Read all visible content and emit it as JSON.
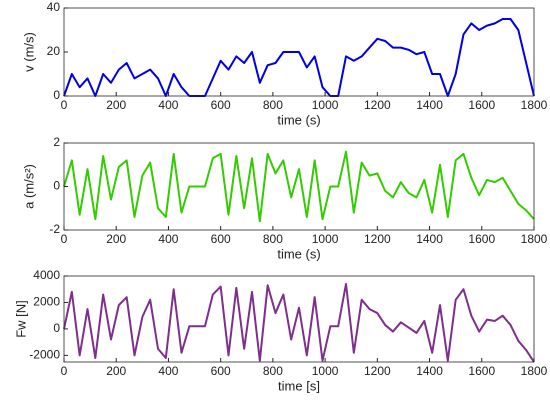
{
  "chart_data": [
    {
      "type": "line",
      "xlabel": "time (s)",
      "ylabel": "v (m/s)",
      "x": [
        0,
        30,
        60,
        90,
        120,
        150,
        180,
        210,
        240,
        270,
        300,
        330,
        360,
        390,
        420,
        450,
        480,
        510,
        540,
        570,
        600,
        630,
        660,
        690,
        720,
        750,
        780,
        810,
        840,
        870,
        900,
        930,
        960,
        990,
        1020,
        1050,
        1080,
        1110,
        1140,
        1170,
        1200,
        1230,
        1260,
        1290,
        1320,
        1350,
        1380,
        1410,
        1440,
        1470,
        1500,
        1530,
        1560,
        1590,
        1620,
        1650,
        1680,
        1710,
        1740,
        1770,
        1800
      ],
      "series": [
        {
          "color": "#0000e6",
          "values": [
            0,
            10,
            4,
            8,
            0,
            10,
            6,
            12,
            15,
            8,
            10,
            12,
            8,
            0,
            10,
            4,
            0,
            0,
            0,
            8,
            16,
            12,
            18,
            15,
            20,
            6,
            14,
            15,
            20,
            20,
            20,
            13,
            18,
            4,
            0,
            0,
            18,
            16,
            18,
            22,
            26,
            25,
            22,
            22,
            21,
            19,
            20,
            10,
            10,
            0,
            10,
            28,
            33,
            30,
            32,
            33,
            35,
            35,
            30,
            15,
            0
          ]
        }
      ],
      "xlim": [
        0,
        1800
      ],
      "xticks": [
        0,
        200,
        400,
        600,
        800,
        1000,
        1200,
        1400,
        1600,
        1800
      ],
      "ylim": [
        0,
        40
      ],
      "yticks": [
        0,
        20,
        40
      ]
    },
    {
      "type": "line",
      "xlabel": "time (s)",
      "ylabel": "a (m/s²)",
      "x": [
        0,
        30,
        60,
        90,
        120,
        150,
        180,
        210,
        240,
        270,
        300,
        330,
        360,
        390,
        420,
        450,
        480,
        510,
        540,
        570,
        600,
        630,
        660,
        690,
        720,
        750,
        780,
        810,
        840,
        870,
        900,
        930,
        960,
        990,
        1020,
        1050,
        1080,
        1110,
        1140,
        1170,
        1200,
        1230,
        1260,
        1290,
        1320,
        1350,
        1380,
        1410,
        1440,
        1470,
        1500,
        1530,
        1560,
        1590,
        1620,
        1650,
        1680,
        1710,
        1740,
        1770,
        1800
      ],
      "series": [
        {
          "color": "#33cc00",
          "values": [
            0,
            1.2,
            -1.3,
            0.8,
            -1.5,
            1.4,
            -0.6,
            0.9,
            1.2,
            -1.4,
            0.5,
            1.1,
            -1,
            -1.4,
            1.5,
            -1.2,
            0,
            0,
            0,
            1.3,
            1.5,
            -1.3,
            1.4,
            -1,
            1.3,
            -1.6,
            1.5,
            0.6,
            1.2,
            -0.5,
            0.8,
            -1.4,
            1.2,
            -1.5,
            0,
            0,
            1.6,
            -1.2,
            1.1,
            0.5,
            0.6,
            -0.2,
            -0.5,
            0.2,
            -0.3,
            -0.5,
            0.3,
            -1.2,
            1,
            -1.4,
            1.2,
            1.5,
            0.4,
            -0.4,
            0.3,
            0.2,
            0.4,
            -0.2,
            -0.8,
            -1.1,
            -1.5
          ]
        }
      ],
      "xlim": [
        0,
        1800
      ],
      "xticks": [
        0,
        200,
        400,
        600,
        800,
        1000,
        1200,
        1400,
        1600,
        1800
      ],
      "ylim": [
        -2,
        2
      ],
      "yticks": [
        -2,
        0,
        2
      ]
    },
    {
      "type": "line",
      "xlabel": "time [s]",
      "ylabel": "Fw [N]",
      "x": [
        0,
        30,
        60,
        90,
        120,
        150,
        180,
        210,
        240,
        270,
        300,
        330,
        360,
        390,
        420,
        450,
        480,
        510,
        540,
        570,
        600,
        630,
        660,
        690,
        720,
        750,
        780,
        810,
        840,
        870,
        900,
        930,
        960,
        990,
        1020,
        1050,
        1080,
        1110,
        1140,
        1170,
        1200,
        1230,
        1260,
        1290,
        1320,
        1350,
        1380,
        1410,
        1440,
        1470,
        1500,
        1530,
        1560,
        1590,
        1620,
        1650,
        1680,
        1710,
        1740,
        1770,
        1800
      ],
      "series": [
        {
          "color": "#7e2f8e",
          "values": [
            0,
            2800,
            -2000,
            1500,
            -2200,
            2600,
            -800,
            1800,
            2400,
            -2000,
            900,
            2200,
            -1500,
            -2200,
            3000,
            -1800,
            200,
            200,
            200,
            2600,
            3200,
            -2000,
            3100,
            -1500,
            2800,
            -2400,
            3300,
            1200,
            2600,
            -800,
            1600,
            -2000,
            2400,
            -2400,
            200,
            200,
            3400,
            -1800,
            2200,
            1500,
            1200,
            300,
            -200,
            500,
            100,
            -300,
            600,
            -1800,
            1800,
            -2400,
            2200,
            3000,
            1000,
            -200,
            700,
            600,
            1000,
            300,
            -900,
            -1600,
            -2500
          ]
        }
      ],
      "xlim": [
        0,
        1800
      ],
      "xticks": [
        0,
        200,
        400,
        600,
        800,
        1000,
        1200,
        1400,
        1600,
        1800
      ],
      "ylim": [
        -2500,
        4000
      ],
      "yticks": [
        -2000,
        0,
        2000,
        4000
      ]
    }
  ]
}
